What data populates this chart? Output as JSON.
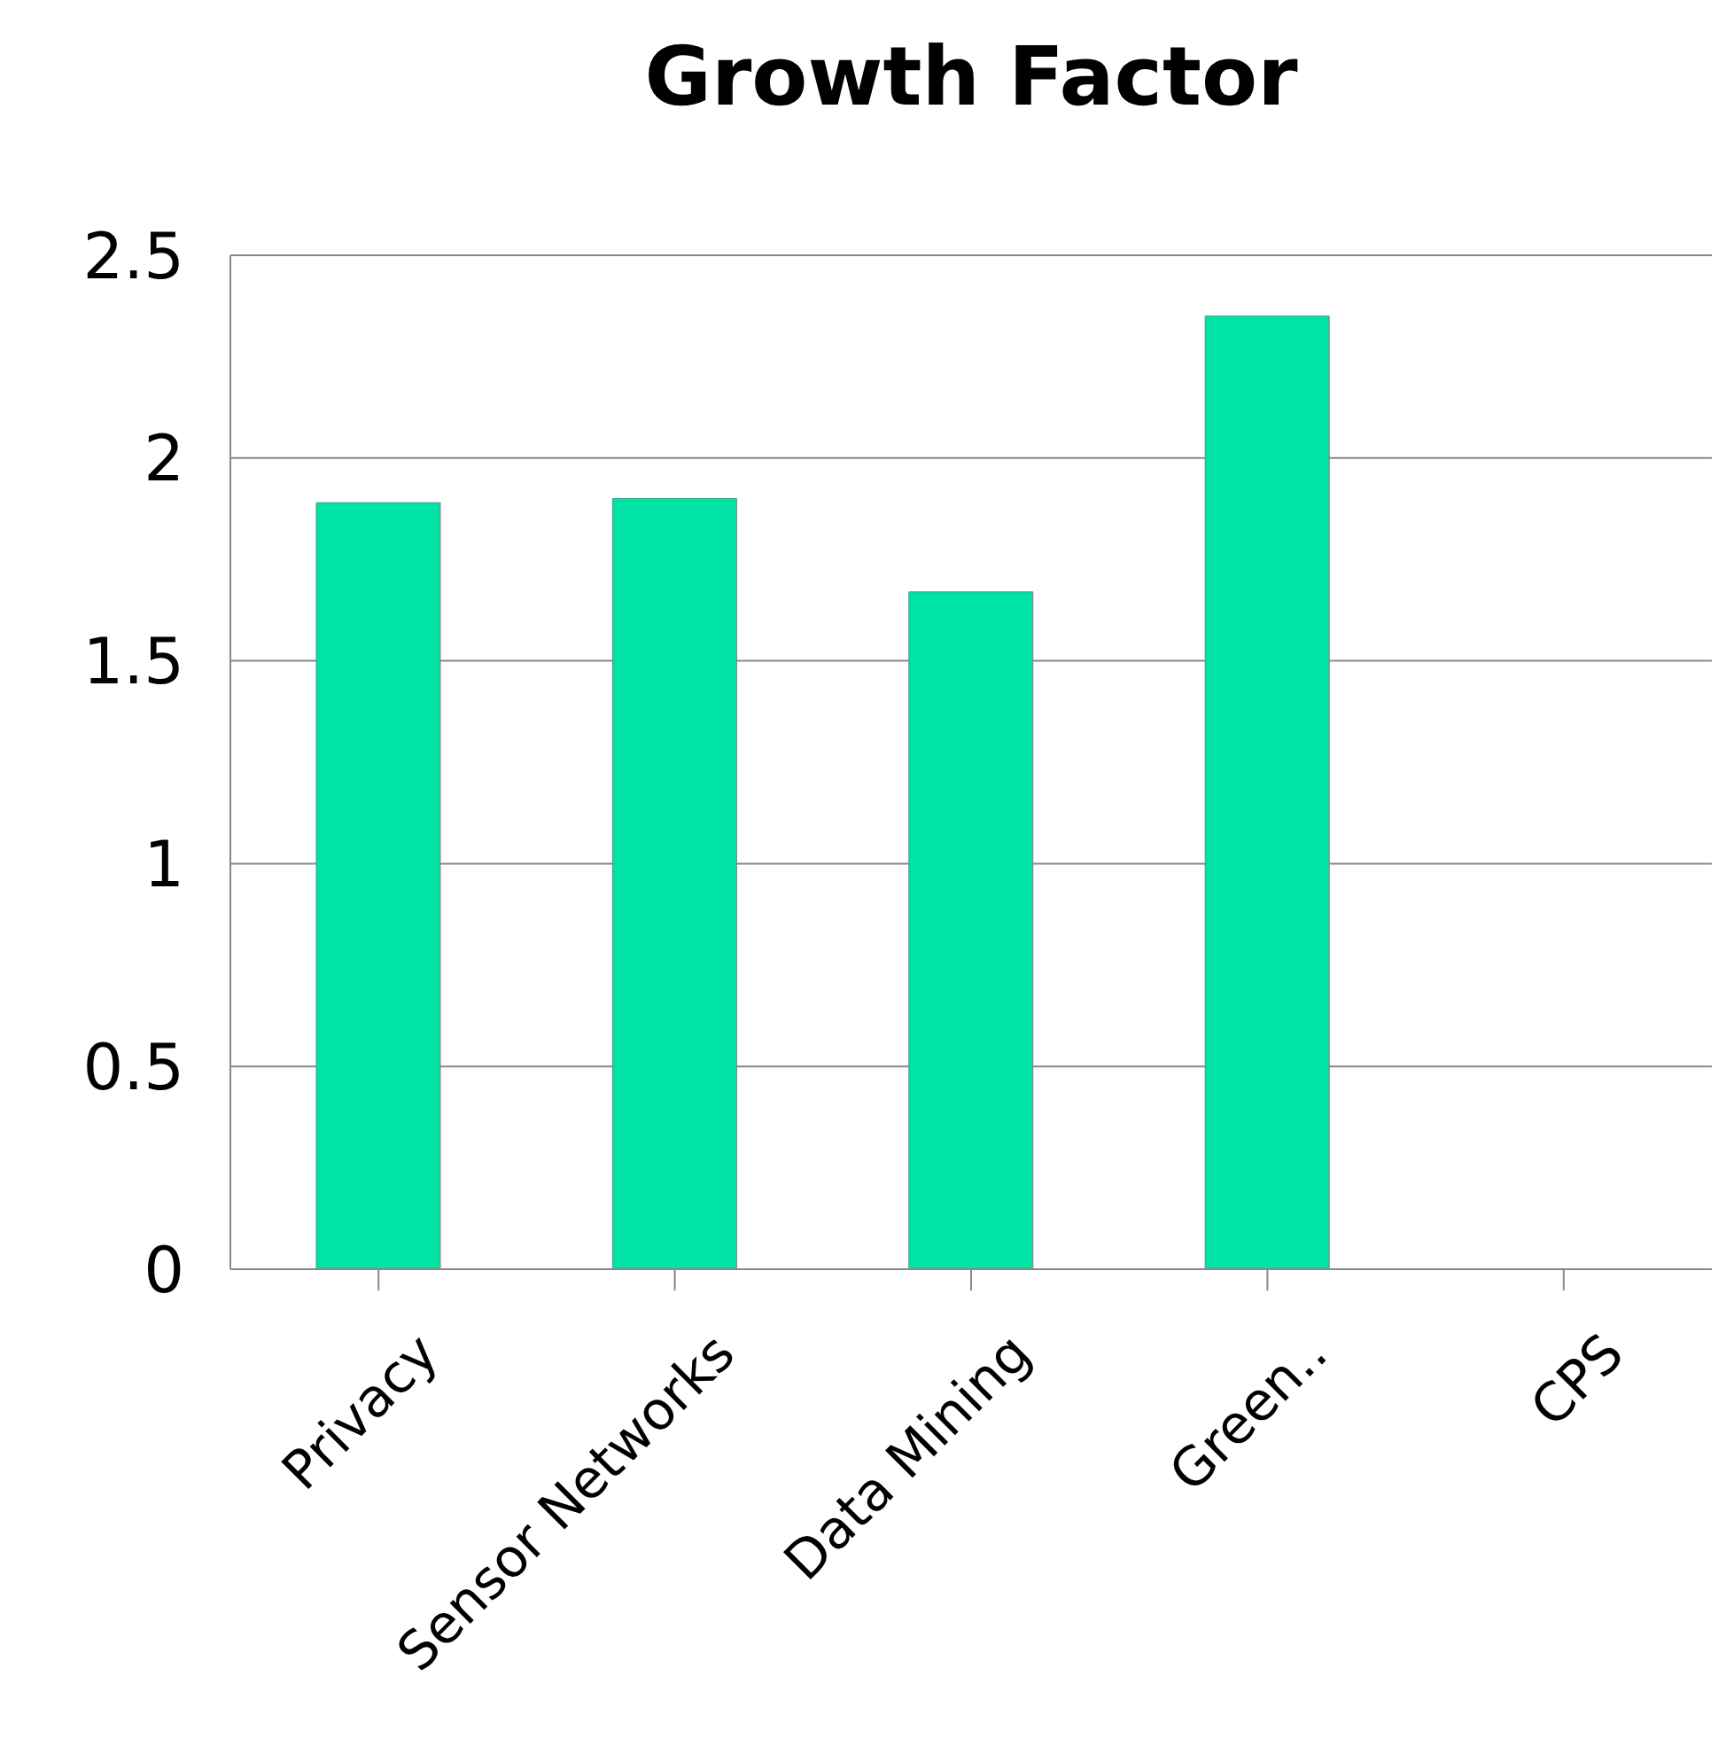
{
  "chart_data": {
    "type": "bar",
    "title": "Growth Factor",
    "categories": [
      "Privacy",
      "Sensor Networks",
      "Data Mining",
      "Green..",
      "CPS"
    ],
    "values": [
      1.89,
      1.9,
      1.67,
      2.35,
      0
    ],
    "color": "#00e3a6",
    "ylim": [
      0,
      2.5
    ],
    "yticks": [
      0,
      0.5,
      1,
      1.5,
      2,
      2.5
    ],
    "grid": "y"
  }
}
